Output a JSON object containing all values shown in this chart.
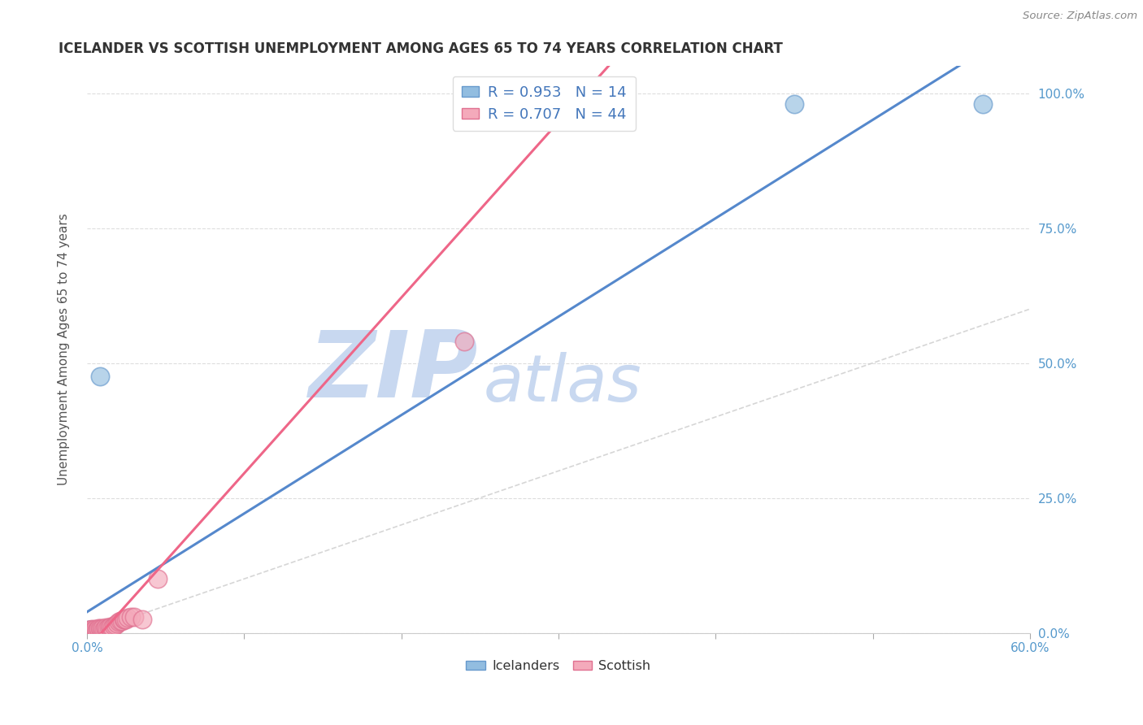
{
  "title": "ICELANDER VS SCOTTISH UNEMPLOYMENT AMONG AGES 65 TO 74 YEARS CORRELATION CHART",
  "source": "Source: ZipAtlas.com",
  "ylabel": "Unemployment Among Ages 65 to 74 years",
  "legend_labels": [
    "Icelanders",
    "Scottish"
  ],
  "legend_R": [
    0.953,
    0.707
  ],
  "legend_N": [
    14,
    44
  ],
  "xlim": [
    0.0,
    0.6
  ],
  "ylim": [
    0.0,
    1.05
  ],
  "xtick_vals": [
    0.0,
    0.1,
    0.2,
    0.3,
    0.4,
    0.5,
    0.6
  ],
  "ytick_vals": [
    0.0,
    0.25,
    0.5,
    0.75,
    1.0
  ],
  "ytick_labels_right": [
    "0.0%",
    "25.0%",
    "50.0%",
    "75.0%",
    "100.0%"
  ],
  "blue_color": "#92BDE0",
  "blue_edge_color": "#6699CC",
  "pink_color": "#F4AABB",
  "pink_edge_color": "#E07090",
  "blue_line_color": "#5588CC",
  "pink_line_color": "#EE6688",
  "diag_color": "#CCCCCC",
  "grid_color": "#DDDDDD",
  "title_color": "#333333",
  "axis_label_color": "#555555",
  "tick_color": "#5599CC",
  "background_color": "#FFFFFF",
  "watermark_zip_color": "#C8D8F0",
  "watermark_atlas_color": "#C8D8F0",
  "iceland_x": [
    0.001,
    0.001,
    0.002,
    0.002,
    0.003,
    0.003,
    0.004,
    0.004,
    0.005,
    0.006,
    0.007,
    0.008,
    0.45,
    0.57
  ],
  "iceland_y": [
    0.003,
    0.006,
    0.003,
    0.006,
    0.003,
    0.006,
    0.003,
    0.006,
    0.005,
    0.005,
    0.005,
    0.475,
    0.98,
    0.98
  ],
  "scottish_x": [
    0.001,
    0.001,
    0.002,
    0.002,
    0.003,
    0.003,
    0.003,
    0.004,
    0.004,
    0.005,
    0.005,
    0.006,
    0.006,
    0.007,
    0.007,
    0.008,
    0.009,
    0.01,
    0.01,
    0.011,
    0.012,
    0.012,
    0.013,
    0.014,
    0.015,
    0.015,
    0.016,
    0.017,
    0.018,
    0.019,
    0.02,
    0.021,
    0.022,
    0.023,
    0.024,
    0.025,
    0.026,
    0.028,
    0.03,
    0.035,
    0.045,
    0.24,
    0.25,
    0.3
  ],
  "scottish_y": [
    0.003,
    0.005,
    0.003,
    0.005,
    0.003,
    0.005,
    0.007,
    0.003,
    0.005,
    0.004,
    0.007,
    0.004,
    0.006,
    0.005,
    0.008,
    0.008,
    0.007,
    0.004,
    0.008,
    0.007,
    0.007,
    0.01,
    0.008,
    0.01,
    0.008,
    0.012,
    0.01,
    0.013,
    0.015,
    0.018,
    0.02,
    0.022,
    0.022,
    0.025,
    0.025,
    0.025,
    0.028,
    0.03,
    0.03,
    0.025,
    0.1,
    0.54,
    0.98,
    0.98
  ]
}
